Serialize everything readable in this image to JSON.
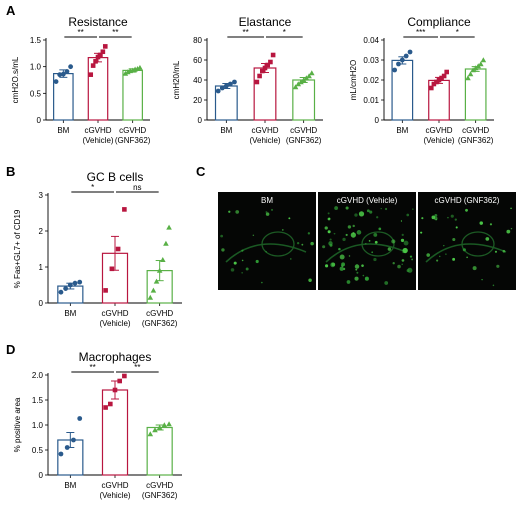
{
  "panel_labels": [
    "A",
    "B",
    "C",
    "D"
  ],
  "colors": {
    "bm": "#2a5a8c",
    "vehicle": "#b8163f",
    "gnf": "#59b046"
  },
  "chart_data": [
    {
      "type": "bar",
      "panel": "A",
      "title": "Resistance",
      "ylabel": "cmH2O.s/mL",
      "categories": [
        [
          "BM"
        ],
        [
          "cGVHD",
          "(Vehicle)"
        ],
        [
          "cGVHD",
          "(GNF362)"
        ]
      ],
      "ylim": [
        0,
        1.5
      ],
      "yticks": [
        0,
        0.5,
        1.0,
        1.5
      ],
      "ytick_labels": [
        "0",
        "0.5",
        "1.0",
        "1.5"
      ],
      "means": [
        0.87,
        1.17,
        0.93
      ],
      "sem": [
        0.07,
        0.08,
        0.03
      ],
      "points": [
        [
          0.72,
          0.85,
          0.86,
          0.91,
          1.0
        ],
        [
          0.85,
          1.02,
          1.1,
          1.18,
          1.22,
          1.28,
          1.38
        ],
        [
          0.87,
          0.9,
          0.92,
          0.93,
          0.95,
          0.96,
          0.98
        ]
      ],
      "markers": [
        "circle",
        "square",
        "triangle"
      ],
      "significance": [
        {
          "from": 0,
          "to": 1,
          "label": "**"
        },
        {
          "from": 1,
          "to": 2,
          "label": "**"
        }
      ]
    },
    {
      "type": "bar",
      "panel": "A",
      "title": "Elastance",
      "ylabel": "cmH20/mL",
      "categories": [
        [
          "BM"
        ],
        [
          "cGVHD",
          "(Vehicle)"
        ],
        [
          "cGVHD",
          "(GNF362)"
        ]
      ],
      "ylim": [
        0,
        80
      ],
      "yticks": [
        0,
        20,
        40,
        60,
        80
      ],
      "ytick_labels": [
        "0",
        "20",
        "40",
        "60",
        "80"
      ],
      "means": [
        34,
        52,
        40
      ],
      "sem": [
        2.5,
        4.5,
        2.5
      ],
      "points": [
        [
          29,
          32,
          34,
          36,
          38
        ],
        [
          38,
          44,
          49,
          52,
          55,
          58,
          65
        ],
        [
          33,
          36,
          38,
          40,
          42,
          44,
          47
        ]
      ],
      "markers": [
        "circle",
        "square",
        "triangle"
      ],
      "significance": [
        {
          "from": 0,
          "to": 1,
          "label": "**"
        },
        {
          "from": 1,
          "to": 2,
          "label": "*"
        }
      ]
    },
    {
      "type": "bar",
      "panel": "A",
      "title": "Compliance",
      "ylabel": "mL/cmH2O",
      "categories": [
        [
          "BM"
        ],
        [
          "cGVHD",
          "(Vehicle)"
        ],
        [
          "cGVHD",
          "(GNF362)"
        ]
      ],
      "ylim": [
        0,
        0.04
      ],
      "yticks": [
        0,
        0.01,
        0.02,
        0.03,
        0.04
      ],
      "ytick_labels": [
        "0",
        "0.01",
        "0.02",
        "0.03",
        "0.04"
      ],
      "means": [
        0.0298,
        0.0198,
        0.0255
      ],
      "sem": [
        0.0018,
        0.0015,
        0.0012
      ],
      "points": [
        [
          0.025,
          0.028,
          0.03,
          0.032,
          0.034
        ],
        [
          0.016,
          0.018,
          0.019,
          0.02,
          0.021,
          0.022,
          0.024
        ],
        [
          0.021,
          0.023,
          0.025,
          0.026,
          0.027,
          0.028,
          0.03
        ]
      ],
      "markers": [
        "circle",
        "square",
        "triangle"
      ],
      "significance": [
        {
          "from": 0,
          "to": 1,
          "label": "***"
        },
        {
          "from": 1,
          "to": 2,
          "label": "*"
        }
      ]
    },
    {
      "type": "bar",
      "panel": "B",
      "title": "GC B cells",
      "ylabel": "% Fas+GL7+ of CD19",
      "categories": [
        [
          "BM"
        ],
        [
          "cGVHD",
          "(Vehicle)"
        ],
        [
          "cGVHD",
          "(GNF362)"
        ]
      ],
      "ylim": [
        0,
        3
      ],
      "yticks": [
        0,
        1,
        2,
        3
      ],
      "ytick_labels": [
        "0",
        "1",
        "2",
        "3"
      ],
      "means": [
        0.47,
        1.38,
        0.9
      ],
      "sem": [
        0.08,
        0.47,
        0.28
      ],
      "points": [
        [
          0.3,
          0.4,
          0.5,
          0.55,
          0.58
        ],
        [
          0.35,
          0.95,
          1.5,
          2.6
        ],
        [
          0.15,
          0.35,
          0.6,
          0.9,
          1.2,
          1.65,
          2.1
        ]
      ],
      "markers": [
        "circle",
        "square",
        "triangle"
      ],
      "significance": [
        {
          "from": 0,
          "to": 1,
          "label": "*"
        },
        {
          "from": 1,
          "to": 2,
          "label": "ns"
        }
      ]
    },
    {
      "type": "bar",
      "panel": "D",
      "title": "Macrophages",
      "ylabel": "% positive area",
      "categories": [
        [
          "BM"
        ],
        [
          "cGVHD",
          "(Vehicle)"
        ],
        [
          "cGVHD",
          "(GNF362)"
        ]
      ],
      "ylim": [
        0,
        2.0
      ],
      "yticks": [
        0,
        0.5,
        1.0,
        1.5,
        2.0
      ],
      "ytick_labels": [
        "0",
        "0.5",
        "1.0",
        "1.5",
        "2.0"
      ],
      "means": [
        0.7,
        1.7,
        0.95
      ],
      "sem": [
        0.15,
        0.18,
        0.05
      ],
      "points": [
        [
          0.42,
          0.55,
          0.7,
          1.13
        ],
        [
          1.35,
          1.42,
          1.7,
          1.88,
          1.98
        ],
        [
          0.82,
          0.9,
          0.95,
          1.0,
          1.02
        ]
      ],
      "markers": [
        "circle",
        "square",
        "triangle"
      ],
      "significance": [
        {
          "from": 0,
          "to": 1,
          "label": "**"
        },
        {
          "from": 1,
          "to": 2,
          "label": "**"
        }
      ]
    }
  ],
  "micrographs": {
    "labels": [
      "BM",
      "cGVHD (Vehicle)",
      "cGVHD (GNF362)"
    ],
    "density": [
      0.35,
      1.0,
      0.45
    ]
  }
}
